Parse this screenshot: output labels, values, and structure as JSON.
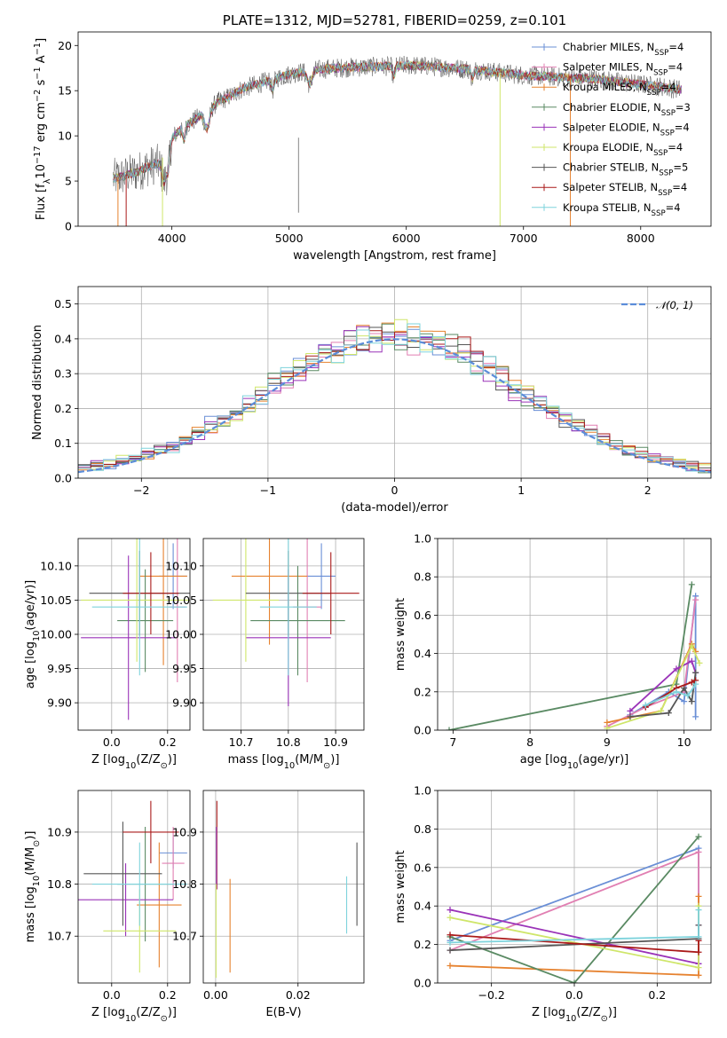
{
  "colors": {
    "Chabrier MILES": "#6a8fd6",
    "Salpeter MILES": "#e17fb2",
    "Kroupa MILES": "#e6822f",
    "Chabrier ELODIE": "#5a8a63",
    "Salpeter ELODIE": "#9a33b8",
    "Kroupa ELODIE": "#cfe66a",
    "Chabrier STELIB": "#565656",
    "Salpeter STELIB": "#aa1a1a",
    "Kroupa STELIB": "#7ed3dc",
    "normal_curve": "#5b8dd9"
  },
  "chart_data": [
    {
      "id": "spectrum",
      "type": "line",
      "title": "PLATE=1312, MJD=52781, FIBERID=0259, z=0.101",
      "xlabel": "wavelength [Angstrom, rest frame]",
      "ylabel": "Flux [f",
      "ylabel_sub": "λ",
      "ylabel_mid": "10",
      "ylabel_exp": "−17",
      "ylabel_rest": " erg cm",
      "ylabel_exp2": "−2",
      "ylabel_rest2": " s",
      "ylabel_exp3": "−1",
      "ylabel_rest3": " A",
      "ylabel_exp4": "−1",
      "ylabel_end": "]",
      "xlim": [
        3200,
        8600
      ],
      "ylim": [
        0,
        21.5
      ],
      "xticks": [
        4000,
        5000,
        6000,
        7000,
        8000
      ],
      "yticks": [
        0,
        5,
        10,
        15,
        20
      ],
      "grid": false,
      "legend": [
        {
          "name": "Chabrier MILES, N",
          "sub": "SSP",
          "val": "=4"
        },
        {
          "name": "Salpeter MILES, N",
          "sub": "SSP",
          "val": "=4"
        },
        {
          "name": "Kroupa MILES, N",
          "sub": "SSP",
          "val": "=4"
        },
        {
          "name": "Chabrier ELODIE, N",
          "sub": "SSP",
          "val": "=3"
        },
        {
          "name": "Salpeter ELODIE, N",
          "sub": "SSP",
          "val": "=4"
        },
        {
          "name": "Kroupa ELODIE, N",
          "sub": "SSP",
          "val": "=4"
        },
        {
          "name": "Chabrier STELIB, N",
          "sub": "SSP",
          "val": "=5"
        },
        {
          "name": "Salpeter STELIB, N",
          "sub": "SSP",
          "val": "=4"
        },
        {
          "name": "Kroupa STELIB, N",
          "sub": "SSP",
          "val": "=4"
        }
      ],
      "legend_position": "top-right",
      "continuum_x": [
        3500,
        3600,
        3700,
        3800,
        3900,
        3950,
        4000,
        4100,
        4200,
        4300,
        4400,
        4500,
        4600,
        4800,
        5000,
        5200,
        5400,
        5600,
        5800,
        6000,
        6200,
        6400,
        6600,
        6800,
        7000,
        7200,
        7400,
        7600,
        7800,
        8000,
        8200,
        8350
      ],
      "continuum_y": [
        5.3,
        5.6,
        6.0,
        6.6,
        7.0,
        8.5,
        9.8,
        11.0,
        11.8,
        12.8,
        13.8,
        14.4,
        15.2,
        16.0,
        16.8,
        17.3,
        17.5,
        17.6,
        17.7,
        17.8,
        17.7,
        17.5,
        17.3,
        17.0,
        16.7,
        16.6,
        16.4,
        16.3,
        16.0,
        15.7,
        15.4,
        15.1
      ],
      "drop_lines": [
        3540,
        3610,
        3920,
        6800,
        7400
      ],
      "spikes": [
        5080
      ]
    },
    {
      "id": "residual-distribution",
      "type": "histogram",
      "xlabel": "(data-model)/error",
      "ylabel": "Normed distribution",
      "xlim": [
        -2.5,
        2.5
      ],
      "ylim": [
        0,
        0.55
      ],
      "xticks": [
        -2,
        -1,
        0,
        1,
        2
      ],
      "yticks": [
        0.0,
        0.1,
        0.2,
        0.3,
        0.4,
        0.5
      ],
      "grid": true,
      "legend": [
        {
          "name": "𝒩(0, 1)"
        }
      ],
      "legend_position": "top-right",
      "bin_width": 0.1,
      "bin_range": [
        -2.5,
        2.5
      ],
      "curve": "normal(0,1)"
    },
    {
      "id": "age-vs-Z",
      "type": "scatter",
      "xlabel": "Z [log",
      "xlabel_sub": "10",
      "xlabel_rest": "(Z/Z",
      "xlabel_sub2": "⊙",
      "xlabel_end": ")]",
      "ylabel": "age  [log",
      "ylabel_sub": "10",
      "ylabel_rest": "(age/yr)]",
      "xlim": [
        -0.12,
        0.28
      ],
      "ylim": [
        9.86,
        10.14
      ],
      "xticks": [
        0.0,
        0.2
      ],
      "yticks": [
        9.9,
        9.95,
        10.0,
        10.05,
        10.1
      ],
      "grid": true,
      "points": [
        {
          "series": "Chabrier MILES",
          "x": 0.22,
          "y": 10.085,
          "xerr": 0.05,
          "yerr": 0.048
        },
        {
          "series": "Salpeter MILES",
          "x": 0.235,
          "y": 10.04,
          "xerr": 0.03,
          "yerr": 0.11
        },
        {
          "series": "Kroupa MILES",
          "x": 0.185,
          "y": 10.085,
          "xerr": 0.085,
          "yerr": 0.13
        },
        {
          "series": "Chabrier ELODIE",
          "x": 0.12,
          "y": 10.02,
          "xerr": 0.1,
          "yerr": 0.075
        },
        {
          "series": "Salpeter ELODIE",
          "x": 0.06,
          "y": 9.995,
          "xerr": 0.17,
          "yerr": 0.12
        },
        {
          "series": "Kroupa ELODIE",
          "x": 0.09,
          "y": 10.05,
          "xerr": 0.2,
          "yerr": 0.09
        },
        {
          "series": "Chabrier STELIB",
          "x": 0.1,
          "y": 10.06,
          "xerr": 0.18,
          "yerr": 0.062
        },
        {
          "series": "Salpeter STELIB",
          "x": 0.14,
          "y": 10.06,
          "xerr": 0.1,
          "yerr": 0.06
        },
        {
          "series": "Kroupa STELIB",
          "x": 0.1,
          "y": 10.04,
          "xerr": 0.17,
          "yerr": 0.1
        }
      ]
    },
    {
      "id": "age-vs-mass",
      "type": "scatter",
      "xlabel": "mass [log",
      "xlabel_sub": "10",
      "xlabel_rest": "(M/M",
      "xlabel_sub2": "⊙",
      "xlabel_end": ")]",
      "ylabel": "",
      "xlim": [
        10.62,
        10.96
      ],
      "ylim": [
        9.86,
        10.14
      ],
      "xticks": [
        10.7,
        10.8,
        10.9
      ],
      "yticks": [
        9.9,
        9.95,
        10.0,
        10.05,
        10.1
      ],
      "grid": true,
      "points": [
        {
          "series": "Chabrier MILES",
          "x": 10.87,
          "y": 10.085,
          "xerr": 0.03,
          "yerr": 0.048
        },
        {
          "series": "Salpeter MILES",
          "x": 10.84,
          "y": 10.04,
          "xerr": 0.03,
          "yerr": 0.11
        },
        {
          "series": "Kroupa MILES",
          "x": 10.76,
          "y": 10.085,
          "xerr": 0.08,
          "yerr": 0.1
        },
        {
          "series": "Chabrier ELODIE",
          "x": 10.82,
          "y": 10.02,
          "xerr": 0.1,
          "yerr": 0.08
        },
        {
          "series": "Salpeter ELODIE",
          "x": 10.8,
          "y": 9.995,
          "xerr": 0.09,
          "yerr": 0.1
        },
        {
          "series": "Kroupa ELODIE",
          "x": 10.71,
          "y": 10.05,
          "xerr": 0.07,
          "yerr": 0.09
        },
        {
          "series": "Chabrier STELIB",
          "x": 10.8,
          "y": 10.06,
          "xerr": 0.09,
          "yerr": 0.062
        },
        {
          "series": "Salpeter STELIB",
          "x": 10.89,
          "y": 10.06,
          "xerr": 0.06,
          "yerr": 0.06
        },
        {
          "series": "Kroupa STELIB",
          "x": 10.8,
          "y": 10.04,
          "xerr": 0.06,
          "yerr": 0.1
        }
      ]
    },
    {
      "id": "mass-weight-vs-age",
      "type": "line",
      "xlabel": "age  [log",
      "xlabel_sub": "10",
      "xlabel_rest": "(age/yr)]",
      "ylabel": "mass weight",
      "xlim": [
        6.8,
        10.35
      ],
      "ylim": [
        0,
        1.0
      ],
      "xticks": [
        7,
        8,
        9,
        10
      ],
      "yticks": [
        0.0,
        0.2,
        0.4,
        0.6,
        0.8,
        1.0
      ],
      "grid": true,
      "series": [
        {
          "name": "Chabrier MILES",
          "x": [
            9.3,
            9.8,
            10.0,
            10.15,
            10.15
          ],
          "y": [
            0.08,
            0.2,
            0.15,
            0.7,
            0.07
          ]
        },
        {
          "name": "Salpeter MILES",
          "x": [
            9.0,
            9.5,
            10.0,
            10.15
          ],
          "y": [
            0.02,
            0.12,
            0.2,
            0.68
          ]
        },
        {
          "name": "Kroupa MILES",
          "x": [
            9.0,
            9.7,
            10.1,
            10.15
          ],
          "y": [
            0.04,
            0.1,
            0.45,
            0.41
          ]
        },
        {
          "name": "Chabrier ELODIE",
          "x": [
            6.95,
            9.9,
            10.1
          ],
          "y": [
            0.0,
            0.24,
            0.76
          ]
        },
        {
          "name": "Salpeter ELODIE",
          "x": [
            9.3,
            9.9,
            10.1,
            10.15
          ],
          "y": [
            0.1,
            0.32,
            0.36,
            0.3
          ]
        },
        {
          "name": "Kroupa ELODIE",
          "x": [
            9.0,
            9.7,
            10.1,
            10.2
          ],
          "y": [
            0.01,
            0.1,
            0.44,
            0.35
          ]
        },
        {
          "name": "Chabrier STELIB",
          "x": [
            9.3,
            9.8,
            10.0,
            10.1,
            10.15
          ],
          "y": [
            0.07,
            0.09,
            0.22,
            0.15,
            0.3
          ]
        },
        {
          "name": "Salpeter STELIB",
          "x": [
            9.5,
            9.9,
            10.1,
            10.15
          ],
          "y": [
            0.12,
            0.22,
            0.25,
            0.26
          ]
        },
        {
          "name": "Kroupa STELIB",
          "x": [
            9.5,
            9.9,
            10.05,
            10.15
          ],
          "y": [
            0.13,
            0.2,
            0.18,
            0.24
          ]
        }
      ]
    },
    {
      "id": "mass-vs-Z",
      "type": "scatter",
      "xlabel": "Z [log",
      "xlabel_sub": "10",
      "xlabel_rest": "(Z/Z",
      "xlabel_sub2": "⊙",
      "xlabel_end": ")]",
      "ylabel": "mass [log",
      "ylabel_sub": "10",
      "ylabel_rest": "(M/M",
      "ylabel_sub2": "⊙",
      "ylabel_end": ")]",
      "xlim": [
        -0.12,
        0.28
      ],
      "ylim": [
        10.61,
        10.98
      ],
      "xticks": [
        0.0,
        0.2
      ],
      "yticks": [
        10.7,
        10.8,
        10.9
      ],
      "grid": true,
      "points": [
        {
          "series": "Chabrier MILES",
          "x": 0.22,
          "y": 10.86,
          "xerr": 0.05,
          "yerr": 0.03
        },
        {
          "series": "Salpeter MILES",
          "x": 0.22,
          "y": 10.84,
          "xerr": 0.04,
          "yerr": 0.07
        },
        {
          "series": "Kroupa MILES",
          "x": 0.17,
          "y": 10.76,
          "xerr": 0.08,
          "yerr": 0.12
        },
        {
          "series": "Chabrier ELODIE",
          "x": 0.12,
          "y": 10.8,
          "xerr": 0.1,
          "yerr": 0.11
        },
        {
          "series": "Salpeter ELODIE",
          "x": 0.05,
          "y": 10.77,
          "xerr": 0.17,
          "yerr": 0.07
        },
        {
          "series": "Kroupa ELODIE",
          "x": 0.1,
          "y": 10.71,
          "xerr": 0.13,
          "yerr": 0.08
        },
        {
          "series": "Chabrier STELIB",
          "x": 0.04,
          "y": 10.82,
          "xerr": 0.14,
          "yerr": 0.1
        },
        {
          "series": "Salpeter STELIB",
          "x": 0.14,
          "y": 10.9,
          "xerr": 0.1,
          "yerr": 0.06
        },
        {
          "series": "Kroupa STELIB",
          "x": 0.1,
          "y": 10.8,
          "xerr": 0.17,
          "yerr": 0.08
        }
      ]
    },
    {
      "id": "mass-vs-EBV",
      "type": "scatter",
      "xlabel": "E(B-V)",
      "ylabel": "",
      "xlim": [
        -0.003,
        0.036
      ],
      "ylim": [
        10.61,
        10.98
      ],
      "xticks": [
        0.0,
        0.02
      ],
      "yticks": [
        10.7,
        10.8,
        10.9
      ],
      "grid": true,
      "points": [
        {
          "series": "Salpeter STELIB",
          "x": 0.0003,
          "y": 10.875,
          "xerr": 0.0,
          "yerr": 0.085
        },
        {
          "series": "Salpeter ELODIE",
          "x": 0.0002,
          "y": 10.85,
          "xerr": 0.0,
          "yerr": 0.06
        },
        {
          "series": "Kroupa ELODIE",
          "x": 0.0001,
          "y": 10.71,
          "xerr": 0.0,
          "yerr": 0.09
        },
        {
          "series": "Kroupa MILES",
          "x": 0.0035,
          "y": 10.72,
          "xerr": 0.0,
          "yerr": 0.09
        },
        {
          "series": "Kroupa STELIB",
          "x": 0.0318,
          "y": 10.76,
          "xerr": 0.0,
          "yerr": 0.055
        },
        {
          "series": "Chabrier STELIB",
          "x": 0.0343,
          "y": 10.8,
          "xerr": 0.0,
          "yerr": 0.08
        }
      ]
    },
    {
      "id": "mass-weight-vs-Z",
      "type": "line",
      "xlabel": "Z [log",
      "xlabel_sub": "10",
      "xlabel_rest": "(Z/Z",
      "xlabel_sub2": "⊙",
      "xlabel_end": ")]",
      "ylabel": "mass weight",
      "xlim": [
        -0.33,
        0.33
      ],
      "ylim": [
        0,
        1.0
      ],
      "xticks": [
        -0.2,
        0.0,
        0.2
      ],
      "yticks": [
        0.0,
        0.2,
        0.4,
        0.6,
        0.8,
        1.0
      ],
      "grid": true,
      "series": [
        {
          "name": "Chabrier MILES",
          "x": [
            -0.3,
            0.3,
            0.3
          ],
          "y": [
            0.22,
            0.7,
            0.1
          ]
        },
        {
          "name": "Salpeter MILES",
          "x": [
            -0.3,
            0.3,
            0.3
          ],
          "y": [
            0.17,
            0.68,
            0.22
          ]
        },
        {
          "name": "Kroupa MILES",
          "x": [
            -0.3,
            0.3,
            0.3
          ],
          "y": [
            0.09,
            0.04,
            0.45
          ]
        },
        {
          "name": "Chabrier ELODIE",
          "x": [
            -0.3,
            0.0,
            0.3
          ],
          "y": [
            0.24,
            0.0,
            0.76
          ]
        },
        {
          "name": "Salpeter ELODIE",
          "x": [
            -0.3,
            0.3,
            0.3
          ],
          "y": [
            0.38,
            0.1,
            0.3
          ]
        },
        {
          "name": "Kroupa ELODIE",
          "x": [
            -0.3,
            0.3,
            0.3
          ],
          "y": [
            0.34,
            0.08,
            0.4
          ]
        },
        {
          "name": "Chabrier STELIB",
          "x": [
            -0.3,
            0.3,
            0.3
          ],
          "y": [
            0.17,
            0.23,
            0.3
          ]
        },
        {
          "name": "Salpeter STELIB",
          "x": [
            -0.3,
            0.3,
            0.3
          ],
          "y": [
            0.25,
            0.16,
            0.22
          ]
        },
        {
          "name": "Kroupa STELIB",
          "x": [
            -0.3,
            0.3,
            0.3
          ],
          "y": [
            0.21,
            0.24,
            0.38
          ]
        }
      ]
    }
  ]
}
